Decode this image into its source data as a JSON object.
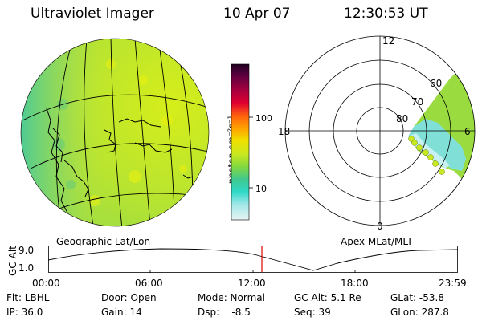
{
  "header": {
    "title": "Ultraviolet Imager",
    "date": "10 Apr 07",
    "time": "12:30:53 UT"
  },
  "colorbar": {
    "unit_label": "photon cm⁻²s⁻¹",
    "tick_100": "100",
    "tick_10": "10",
    "colors_top_to_bottom": [
      "#200020",
      "#5a0040",
      "#a00040",
      "#e00030",
      "#ff5010",
      "#ff9000",
      "#ffc000",
      "#f0e000",
      "#c8e820",
      "#80d840",
      "#40c890",
      "#30d8c8",
      "#80e8e8",
      "#c0f0f0",
      "#e0f0f0"
    ]
  },
  "geo_map": {
    "label": "Geographic Lat/Lon"
  },
  "polar_plot": {
    "label": "Apex MLat/MLT",
    "mlt_12": "12",
    "mlt_18": "18",
    "mlt_6": "6",
    "mlt_0": "0",
    "lat_60": "60",
    "lat_70": "70",
    "lat_80": "80"
  },
  "orbit": {
    "axis_label": "GC Alt",
    "y_top": "9.0",
    "y_bottom": "1.0",
    "x_ticks": [
      "00:00",
      "06:00",
      "12:00",
      "18:00",
      "23:59"
    ],
    "marker_color": "#e00000"
  },
  "info": {
    "row1": {
      "flt": "Flt: LBHL",
      "door": "Door: Open",
      "mode": "Mode: Normal",
      "gcalt": "GC Alt: 5.1 Re",
      "glat": "GLat: -53.8"
    },
    "row2": {
      "ip": "IP: 36.0",
      "gain": "Gain: 14",
      "dsp": "Dsp:    -8.5",
      "seq": "Seq: 39",
      "glon": "GLon: 287.8"
    }
  }
}
